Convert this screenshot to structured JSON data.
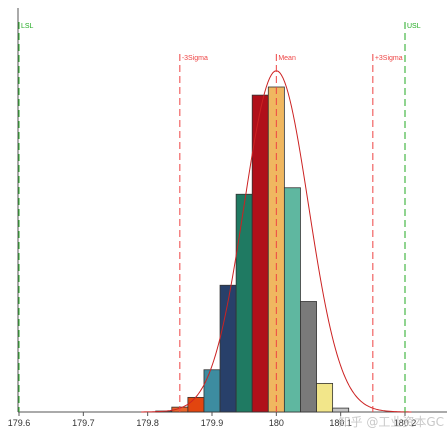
{
  "chart_data": {
    "type": "bar",
    "subtype": "histogram",
    "xlim": [
      179.6,
      180.12
    ],
    "ylim": [
      0,
      1.0
    ],
    "x_ticks": [
      "179.6",
      "179.7",
      "179.8",
      "179.9",
      "180",
      "180.1",
      "180.2"
    ],
    "bin_width": 0.025,
    "bins": [
      {
        "x0": 179.8125,
        "x1": 179.8375,
        "value": 0.003,
        "color": "#7d7d7d"
      },
      {
        "x0": 179.8375,
        "x1": 179.8625,
        "value": 0.015,
        "color": "#e8642a"
      },
      {
        "x0": 179.8625,
        "x1": 179.8875,
        "value": 0.045,
        "color": "#e2450f"
      },
      {
        "x0": 179.8875,
        "x1": 179.9125,
        "value": 0.13,
        "color": "#3d8ca0"
      },
      {
        "x0": 179.9125,
        "x1": 179.9375,
        "value": 0.39,
        "color": "#28406a"
      },
      {
        "x0": 179.9375,
        "x1": 179.9625,
        "value": 0.67,
        "color": "#1f7a62"
      },
      {
        "x0": 179.9625,
        "x1": 179.9875,
        "value": 0.975,
        "color": "#b0101a"
      },
      {
        "x0": 179.9875,
        "x1": 180.0125,
        "value": 1.0,
        "color": "#f0b760"
      },
      {
        "x0": 180.0125,
        "x1": 180.0375,
        "value": 0.69,
        "color": "#5fb7a0"
      },
      {
        "x0": 180.0375,
        "x1": 180.0625,
        "value": 0.34,
        "color": "#7a7a7a"
      },
      {
        "x0": 180.0625,
        "x1": 180.0875,
        "value": 0.088,
        "color": "#f2e68a"
      },
      {
        "x0": 180.0875,
        "x1": 180.1125,
        "value": 0.012,
        "color": "#c4c4c4"
      }
    ],
    "fit_curve": {
      "type": "normal",
      "mean": 180.0,
      "sigma": 0.05,
      "peak": 1.05,
      "color": "#cc2222"
    },
    "reference_lines": [
      {
        "label": "LSL",
        "x": 179.6,
        "color": "#22aa22",
        "style": "dashed"
      },
      {
        "label": "-3Sigma",
        "x": 179.85,
        "color": "#ee4444",
        "style": "dashed"
      },
      {
        "label": "Mean",
        "x": 180.0,
        "color": "#ee4444",
        "style": "dashed"
      },
      {
        "label": "+3Sigma",
        "x": 180.15,
        "color": "#ee4444",
        "style": "dashed"
      },
      {
        "label": "USL",
        "x": 180.2,
        "color": "#22aa22",
        "style": "dashed"
      }
    ],
    "title": "",
    "xlabel": "",
    "ylabel": "",
    "grid": false,
    "legend": "none"
  },
  "watermark": "知乎 @工业资本GC"
}
